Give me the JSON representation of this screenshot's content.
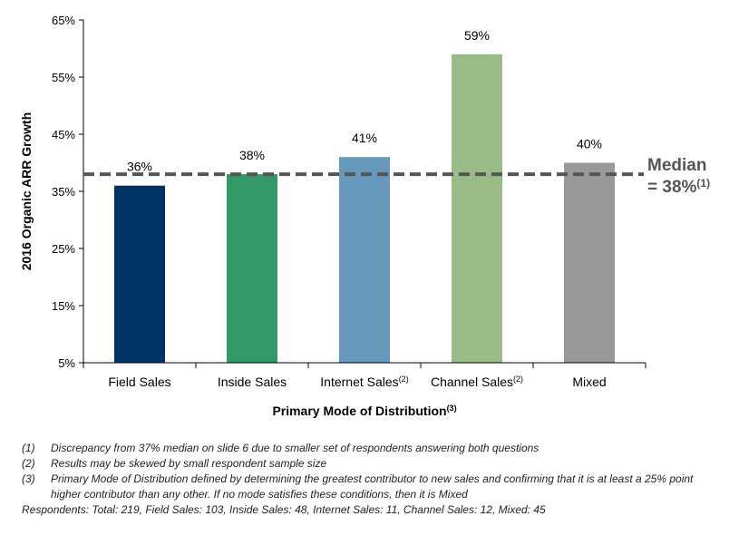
{
  "chart_data": {
    "type": "bar",
    "categories": [
      "Field Sales",
      "Inside Sales",
      "Internet Sales",
      "Channel Sales",
      "Mixed"
    ],
    "category_superscripts": [
      "",
      "",
      "(2)",
      "(2)",
      ""
    ],
    "values": [
      36,
      38,
      41,
      59,
      40
    ],
    "data_labels": [
      "36%",
      "38%",
      "41%",
      "59%",
      "40%"
    ],
    "colors": [
      "#003366",
      "#339966",
      "#6699BB",
      "#99BB88",
      "#999999"
    ],
    "ylabel": "2016 Organic ARR Growth",
    "xlabel": "Primary  Mode of Distribution",
    "xlabel_superscript": "(3)",
    "ylim": [
      5,
      65
    ],
    "yticks": [
      5,
      15,
      25,
      35,
      45,
      55,
      65
    ],
    "ytick_labels": [
      "5%",
      "15%",
      "25%",
      "35%",
      "45%",
      "55%",
      "65%"
    ],
    "grid": false,
    "median": {
      "value": 38,
      "label_line1": "Median",
      "label_line2": "= 38%",
      "superscript": "(1)",
      "color": "#555555"
    }
  },
  "footnotes": [
    {
      "num": "(1)",
      "text": "Discrepancy from 37% median on slide 6 due to smaller set of respondents answering both questions"
    },
    {
      "num": "(2)",
      "text": "Results may be skewed by small respondent sample size"
    },
    {
      "num": "(3)",
      "text": "Primary Mode of Distribution defined by determining the greatest contributor to new sales and confirming that it is at least a 25% point higher contributor than any other.  If no mode satisfies these conditions, then it is Mixed"
    }
  ],
  "respondents": "Respondents: Total: 219, Field Sales: 103, Inside Sales: 48, Internet Sales: 11, Channel Sales: 12, Mixed: 45"
}
